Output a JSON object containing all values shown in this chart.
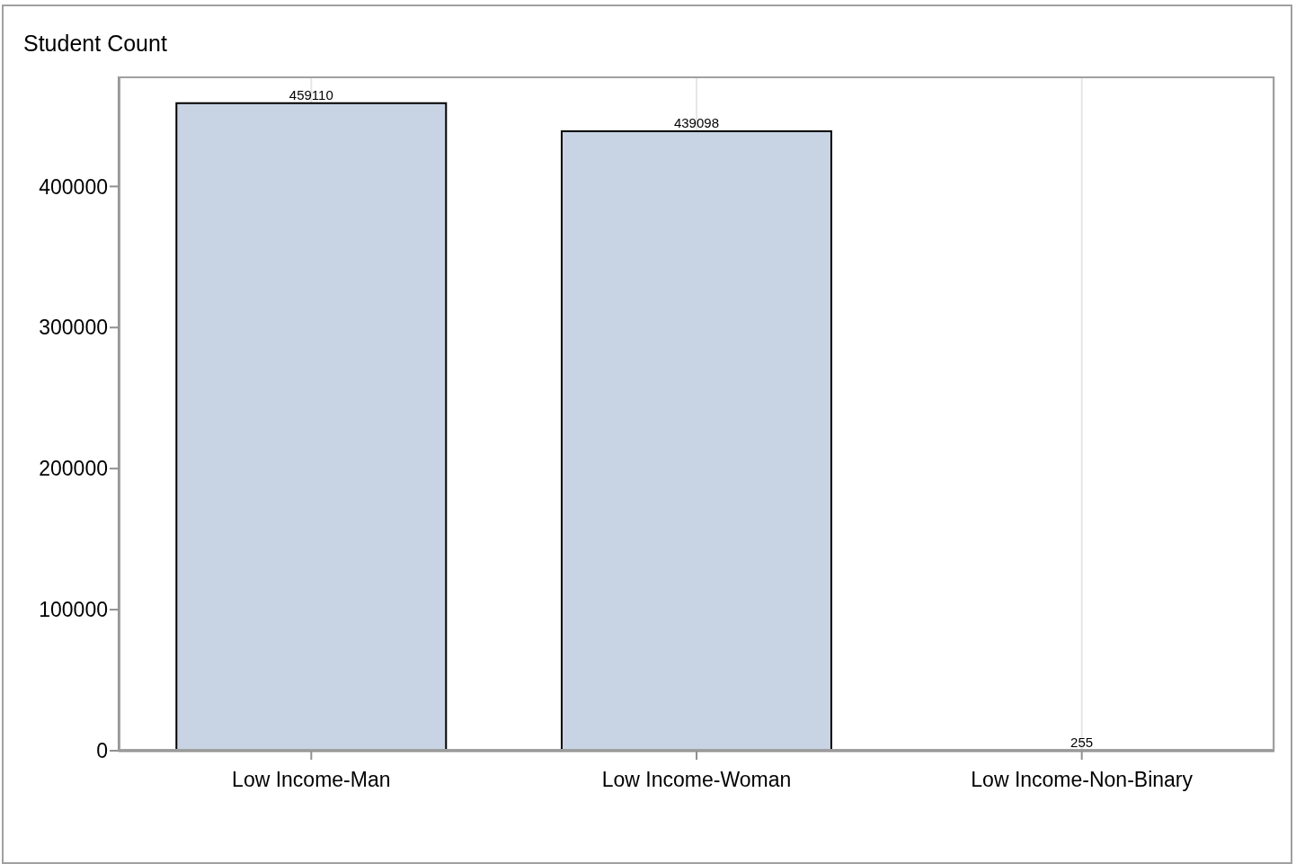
{
  "chart_data": {
    "type": "bar",
    "ylabel": "Student Count",
    "categories": [
      "Low Income-Man",
      "Low Income-Woman",
      "Low Income-Non-Binary"
    ],
    "values": [
      459110,
      439098,
      255
    ],
    "color": "#c8d4e3",
    "ylim": [
      0,
      478000
    ],
    "yticks": [
      0,
      100000,
      200000,
      300000,
      400000
    ],
    "grid": "x",
    "data_labels": true
  }
}
